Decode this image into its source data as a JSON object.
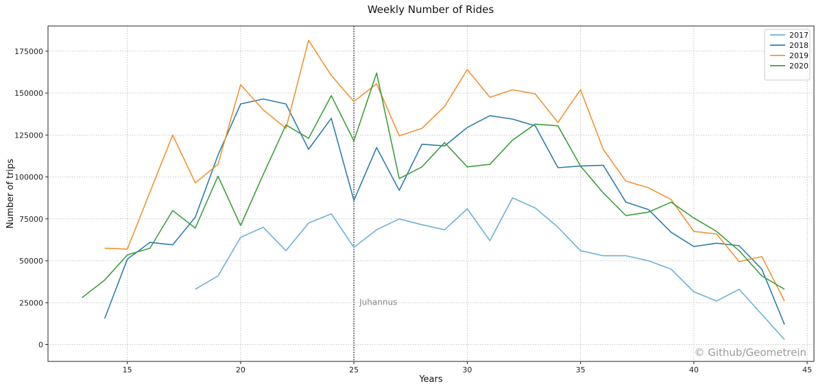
{
  "chart_data": {
    "type": "line",
    "title": "Weekly Number of Rides",
    "xlabel": "Years",
    "ylabel": "Number of trips",
    "xlim": [
      11.5,
      45.3
    ],
    "ylim": [
      -10000,
      190000
    ],
    "xticks": [
      15,
      20,
      25,
      30,
      35,
      40,
      45
    ],
    "yticks": [
      0,
      25000,
      50000,
      75000,
      100000,
      125000,
      150000,
      175000
    ],
    "grid": true,
    "legend_position": "top-right",
    "annotation": {
      "x": 25,
      "label": "Juhannus"
    },
    "watermark": "© Github/Geometrein",
    "series": [
      {
        "name": "2017",
        "color": "#6baed6",
        "x": [
          18,
          19,
          20,
          21,
          22,
          23,
          24,
          25,
          26,
          27,
          28,
          29,
          30,
          31,
          32,
          33,
          34,
          35,
          36,
          37,
          38,
          39,
          40,
          41,
          42,
          43,
          44
        ],
        "y": [
          33000,
          41000,
          64000,
          70000,
          56000,
          72500,
          78000,
          58000,
          68500,
          75000,
          71500,
          68500,
          81000,
          62000,
          87500,
          81500,
          70000,
          56000,
          53000,
          53000,
          50000,
          45000,
          31500,
          26000,
          33000,
          18000,
          3000
        ]
      },
      {
        "name": "2018",
        "color": "#2b7bab",
        "x": [
          14,
          15,
          16,
          17,
          18,
          19,
          20,
          21,
          22,
          23,
          24,
          25,
          26,
          27,
          28,
          29,
          30,
          31,
          32,
          33,
          34,
          35,
          36,
          37,
          38,
          39,
          40,
          41,
          42,
          43,
          44
        ],
        "y": [
          15500,
          51000,
          61000,
          59500,
          76000,
          113000,
          143500,
          146500,
          143500,
          116500,
          135000,
          86000,
          117500,
          92000,
          119500,
          118500,
          129500,
          136500,
          134500,
          130500,
          105500,
          106500,
          107000,
          85000,
          80500,
          67000,
          58500,
          60500,
          59000,
          45000,
          12000
        ]
      },
      {
        "name": "2019",
        "color": "#f0922f",
        "x": [
          14,
          15,
          16,
          17,
          18,
          19,
          20,
          21,
          22,
          23,
          24,
          25,
          26,
          27,
          28,
          29,
          30,
          31,
          32,
          33,
          34,
          35,
          36,
          37,
          38,
          39,
          40,
          41,
          42,
          43,
          44
        ],
        "y": [
          57500,
          57000,
          91000,
          125000,
          96500,
          107500,
          155000,
          140000,
          129000,
          181500,
          160500,
          145000,
          155500,
          124500,
          129000,
          142000,
          164000,
          147500,
          152000,
          149500,
          132500,
          152000,
          116500,
          97500,
          93500,
          86500,
          67500,
          66000,
          49500,
          52500,
          26000
        ]
      },
      {
        "name": "2020",
        "color": "#3b9e3b",
        "x": [
          13,
          14,
          15,
          16,
          17,
          18,
          19,
          20,
          21,
          22,
          23,
          24,
          25,
          26,
          27,
          28,
          29,
          30,
          31,
          32,
          33,
          34,
          35,
          36,
          37,
          38,
          39,
          40,
          41,
          42,
          43,
          44
        ],
        "y": [
          28000,
          38500,
          53500,
          57500,
          80000,
          69500,
          100500,
          71000,
          101500,
          131000,
          123000,
          148500,
          121500,
          162000,
          99000,
          106000,
          120500,
          106000,
          107500,
          122000,
          131500,
          130500,
          106500,
          90500,
          77000,
          79000,
          85000,
          75500,
          67500,
          56000,
          41000,
          33000
        ]
      }
    ]
  }
}
